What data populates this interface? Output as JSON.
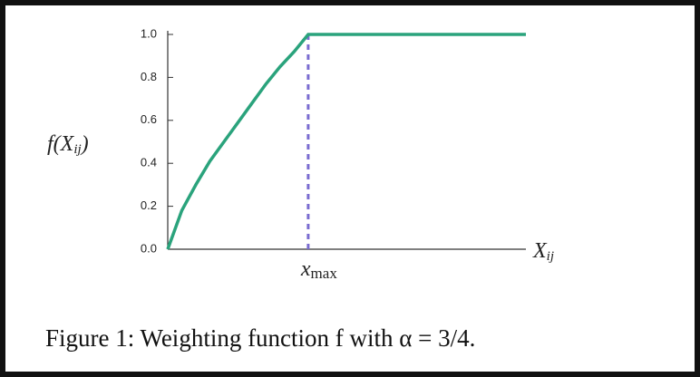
{
  "chart_data": {
    "type": "line",
    "ylabel": {
      "base": "f(X",
      "sub": "ij",
      "close": ")"
    },
    "xlabel": {
      "base": "X",
      "sub": "ij"
    },
    "annotation": {
      "base": "x",
      "sub": "max"
    },
    "caption": "Figure 1: Weighting function f with α = 3/4.",
    "x": [
      0,
      0.1,
      0.2,
      0.3,
      0.4,
      0.5,
      0.6,
      0.7,
      0.8,
      0.9,
      1,
      2.55
    ],
    "series": [
      {
        "color": "#2aa37c",
        "values": [
          0,
          0.18,
          0.3,
          0.41,
          0.5,
          0.59,
          0.68,
          0.77,
          0.85,
          0.92,
          1,
          1
        ]
      }
    ],
    "marker_line": {
      "x": 1,
      "color": "#7a6cd0"
    },
    "xlim": [
      0,
      2.55
    ],
    "ylim": [
      0,
      1
    ],
    "yticks": [
      {
        "value": 0,
        "label": "0.0"
      },
      0.2,
      0.4,
      0.6,
      0.8,
      {
        "value": 1,
        "label": "1.0"
      }
    ]
  }
}
